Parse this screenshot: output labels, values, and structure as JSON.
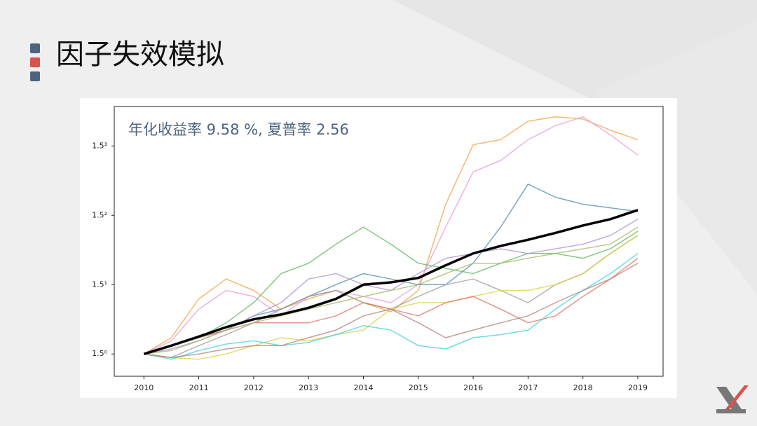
{
  "title": "因子失效模拟",
  "chart_data": {
    "type": "line",
    "annotation": "年化收益率 9.58 %, 夏普率 2.56",
    "log_scale_y": true,
    "x": [
      2010,
      2010.5,
      2011,
      2011.5,
      2012,
      2012.5,
      2013,
      2013.5,
      2014,
      2014.5,
      2015,
      2015.5,
      2016,
      2016.5,
      2017,
      2017.5,
      2018,
      2018.5,
      2019
    ],
    "xlim": [
      2009.46,
      2019.46
    ],
    "xticks": [
      2010,
      2011,
      2012,
      2013,
      2014,
      2015,
      2016,
      2017,
      2018,
      2019
    ],
    "ylim": [
      0.878,
      4.25
    ],
    "yticks": [
      {
        "value": 1,
        "label": "1.5⁰"
      },
      {
        "value": 1.5,
        "label": "1.5¹"
      },
      {
        "value": 2.25,
        "label": "1.5²"
      },
      {
        "value": 3.375,
        "label": "1.5³"
      }
    ],
    "series": [
      {
        "color": "#f5a040",
        "values": [
          1.0,
          1.1,
          1.38,
          1.55,
          1.45,
          1.3,
          1.38,
          1.45,
          1.35,
          1.28,
          1.45,
          2.4,
          3.4,
          3.5,
          3.9,
          4.0,
          3.95,
          3.7,
          3.5
        ]
      },
      {
        "color": "#e89ad8",
        "values": [
          1.0,
          1.08,
          1.3,
          1.45,
          1.4,
          1.25,
          1.4,
          1.45,
          1.4,
          1.35,
          1.5,
          2.1,
          2.9,
          3.1,
          3.5,
          3.8,
          4.0,
          3.6,
          3.2
        ]
      },
      {
        "color": "#4a8bb0",
        "values": [
          1.0,
          1.05,
          1.1,
          1.15,
          1.25,
          1.3,
          1.4,
          1.5,
          1.6,
          1.55,
          1.5,
          1.5,
          1.7,
          2.1,
          2.7,
          2.5,
          2.4,
          2.35,
          2.3
        ]
      },
      {
        "color": "#5cb85c",
        "values": [
          1.0,
          1.05,
          1.1,
          1.2,
          1.35,
          1.6,
          1.7,
          1.9,
          2.1,
          1.9,
          1.7,
          1.65,
          1.6,
          1.7,
          1.8,
          1.8,
          1.75,
          1.85,
          2.05
        ]
      },
      {
        "color": "#b090d0",
        "values": [
          1.0,
          1.03,
          1.08,
          1.15,
          1.25,
          1.35,
          1.55,
          1.6,
          1.5,
          1.45,
          1.6,
          1.75,
          1.8,
          1.85,
          1.8,
          1.85,
          1.9,
          2.0,
          2.2
        ]
      },
      {
        "color": "#999999",
        "values": [
          1.0,
          0.98,
          1.05,
          1.12,
          1.2,
          1.3,
          1.4,
          1.45,
          1.35,
          1.3,
          1.4,
          1.5,
          1.55,
          1.45,
          1.35,
          1.5,
          1.6,
          1.8,
          2.0
        ]
      },
      {
        "color": "#d8d040",
        "values": [
          1.0,
          0.98,
          0.97,
          1.0,
          1.05,
          1.1,
          1.08,
          1.12,
          1.15,
          1.3,
          1.35,
          1.35,
          1.4,
          1.45,
          1.45,
          1.5,
          1.6,
          1.8,
          2.0
        ]
      },
      {
        "color": "#40d0d8",
        "values": [
          1.0,
          0.97,
          1.02,
          1.06,
          1.08,
          1.05,
          1.07,
          1.12,
          1.18,
          1.15,
          1.05,
          1.03,
          1.1,
          1.12,
          1.15,
          1.3,
          1.45,
          1.6,
          1.8
        ]
      },
      {
        "color": "#e07060",
        "values": [
          1.0,
          1.05,
          1.1,
          1.15,
          1.2,
          1.2,
          1.2,
          1.25,
          1.35,
          1.3,
          1.25,
          1.35,
          1.4,
          1.3,
          1.2,
          1.25,
          1.4,
          1.55,
          1.75
        ]
      },
      {
        "color": "#b08070",
        "values": [
          1.0,
          0.98,
          1.0,
          1.03,
          1.05,
          1.05,
          1.1,
          1.15,
          1.25,
          1.3,
          1.2,
          1.1,
          1.15,
          1.2,
          1.25,
          1.35,
          1.45,
          1.55,
          1.7
        ]
      },
      {
        "color": "#a8b860",
        "values": [
          1.0,
          1.02,
          1.08,
          1.15,
          1.2,
          1.25,
          1.3,
          1.35,
          1.4,
          1.45,
          1.5,
          1.6,
          1.7,
          1.7,
          1.75,
          1.8,
          1.85,
          1.9,
          2.1
        ]
      },
      {
        "color": "#000000",
        "values": [
          1.0,
          1.05,
          1.107,
          1.17,
          1.225,
          1.26,
          1.31,
          1.38,
          1.5,
          1.52,
          1.56,
          1.68,
          1.8,
          1.88,
          1.95,
          2.03,
          2.12,
          2.2,
          2.32
        ]
      }
    ]
  }
}
